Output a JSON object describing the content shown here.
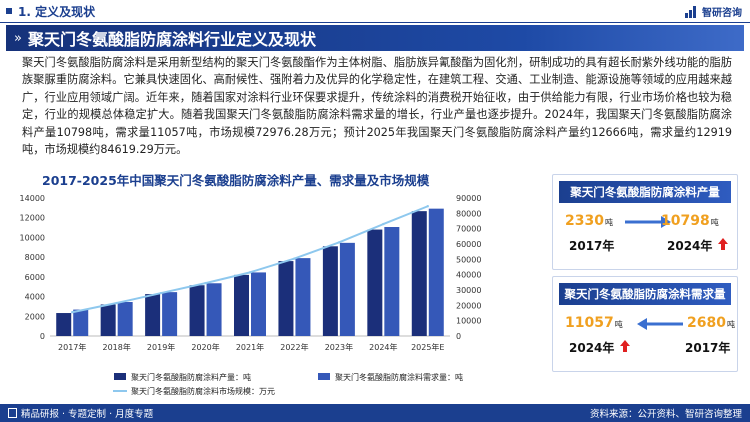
{
  "section": {
    "title": "1. 定义及现状"
  },
  "logo": {
    "text": "智研咨询"
  },
  "banner": {
    "title": "聚天门冬氨酸脂防腐涂料行业定义及现状"
  },
  "body_text": "聚天门冬氨酸脂防腐涂料是采用新型结构的聚天门冬氨酸酯作为主体树脂、脂肪族异氰酸酯为固化剂，研制成功的具有超长耐紫外线功能的脂肪族聚脲重防腐涂料。它兼具快速固化、高耐候性、强附着力及优异的化学稳定性，在建筑工程、交通、工业制造、能源设施等领域的应用越来越广，行业应用领域广阔。近年来，随着国家对涂料行业环保要求提升，传统涂料的消费税开始征收，由于供给能力有限，行业市场价格也较为稳定，行业的规模总体稳定扩大。随着我国聚天门冬氨酸脂防腐涂料需求量的增长，行业产量也逐步提升。2024年，我国聚天门冬氨酸脂防腐涂料产量10798吨，需求量11057吨，市场规模72976.28万元；预计2025年我国聚天门冬氨酸脂防腐涂料产量约12666吨，需求量约12919吨，市场规模约84619.29万元。",
  "chart_data": {
    "type": "bar",
    "title": "2017-2025年中国聚天门冬氨酸脂防腐涂料产量、需求量及市场规模",
    "categories": [
      "2017年",
      "2018年",
      "2019年",
      "2020年",
      "2021年",
      "2022年",
      "2023年",
      "2024年",
      "2025年E"
    ],
    "series": [
      {
        "name": "聚天门冬氨酸脂防腐涂料产量：吨",
        "axis": "left",
        "kind": "bar",
        "color": "#1b2f7a",
        "values": [
          2330,
          3200,
          4250,
          5150,
          6200,
          7600,
          9100,
          10798,
          12666
        ]
      },
      {
        "name": "聚天门冬氨酸脂防腐涂料需求量：吨",
        "axis": "left",
        "kind": "bar",
        "color": "#3558b8",
        "values": [
          2680,
          3450,
          4450,
          5350,
          6450,
          7900,
          9450,
          11057,
          12919
        ]
      },
      {
        "name": "聚天门冬氨酸脂防腐涂料市场规模：万元",
        "axis": "right",
        "kind": "line",
        "color": "#8ec8ee",
        "values": [
          15500,
          21500,
          28000,
          34500,
          41500,
          50500,
          61000,
          72976.28,
          84619.29
        ]
      }
    ],
    "y_left": {
      "min": 0,
      "max": 14000,
      "ticks": [
        0,
        2000,
        4000,
        6000,
        8000,
        10000,
        12000,
        14000
      ]
    },
    "y_right": {
      "min": 0,
      "max": 90000,
      "ticks": [
        0,
        10000,
        20000,
        30000,
        40000,
        50000,
        60000,
        70000,
        80000,
        90000
      ]
    },
    "grid": false,
    "legend_position": "bottom"
  },
  "card_output": {
    "title": "聚天门冬氨酸脂防腐涂料产量",
    "left_value": "2330",
    "left_unit": "吨",
    "left_year": "2017年",
    "right_value": "10798",
    "right_unit": "吨",
    "right_year": "2024年",
    "arrow": "up-arrow-icon",
    "arrow_color": "#e02020"
  },
  "card_demand": {
    "title": "聚天门冬氨酸脂防腐涂料需求量",
    "left_value": "11057",
    "left_unit": "吨",
    "left_year": "2024年",
    "right_value": "2680",
    "right_unit": "吨",
    "right_year": "2017年",
    "arrow": "up-arrow-icon",
    "arrow_color": "#e02020"
  },
  "footer": {
    "left": "精品研报 · 专题定制 · 月度专题",
    "right": "资料来源：公开资料、智研咨询整理"
  },
  "colors": {
    "brand": "#1b3f8f",
    "accent": "#f0a020"
  }
}
